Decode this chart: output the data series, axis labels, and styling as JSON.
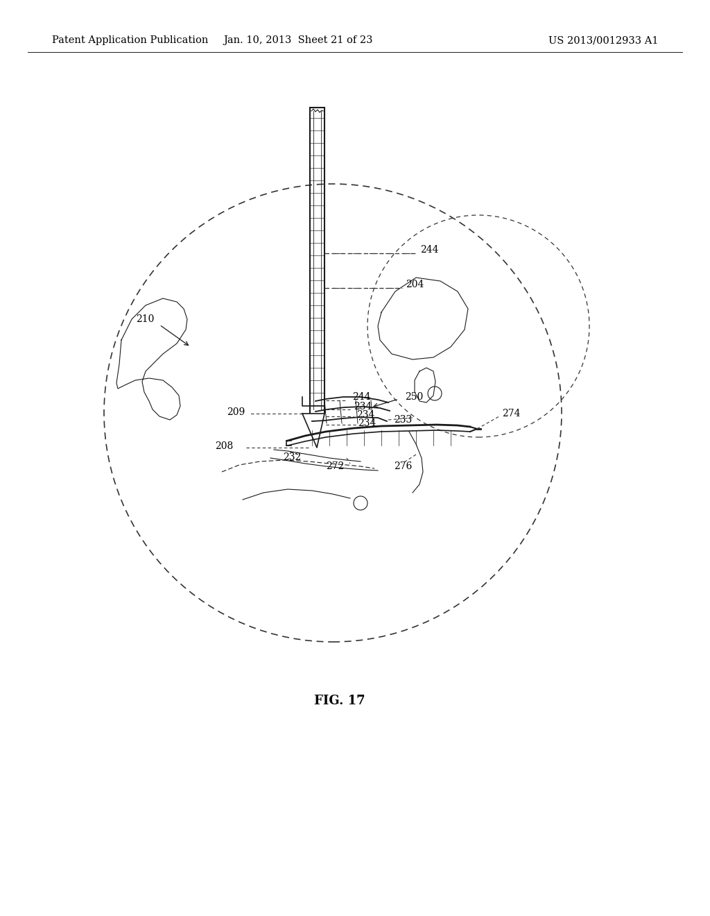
{
  "background_color": "#ffffff",
  "header_left": "Patent Application Publication",
  "header_center": "Jan. 10, 2013  Sheet 21 of 23",
  "header_right": "US 2013/0012933 A1",
  "figure_label": "FIG. 17",
  "header_fontsize": 10.5,
  "label_fontsize": 10,
  "fig_label_fontsize": 13
}
